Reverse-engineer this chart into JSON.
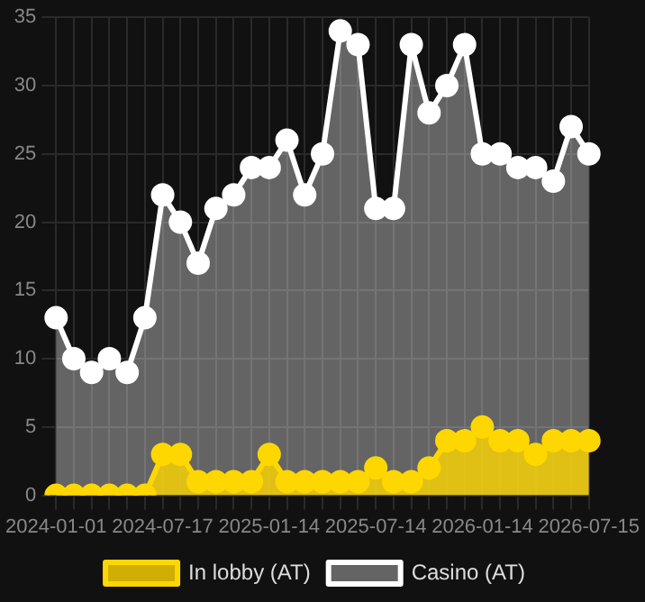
{
  "chart_data": {
    "type": "area",
    "categories": [
      "2024-01-01",
      null,
      null,
      null,
      null,
      null,
      "2024-07-17",
      null,
      null,
      null,
      null,
      null,
      "2025-01-14",
      null,
      null,
      null,
      null,
      null,
      "2025-07-14",
      null,
      null,
      null,
      null,
      null,
      "2026-01-14",
      null,
      null,
      null,
      null,
      null,
      "2026-07-15"
    ],
    "series": [
      {
        "name": "In lobby (AT)",
        "color": "#ffd700",
        "values": [
          0,
          0,
          0,
          0,
          0,
          0,
          3,
          3,
          1,
          1,
          1,
          1,
          3,
          1,
          1,
          1,
          1,
          1,
          2,
          1,
          1,
          2,
          4,
          4,
          5,
          4,
          4,
          3,
          4,
          4,
          4
        ]
      },
      {
        "name": "Casino (AT)",
        "color": "#ffffff",
        "values": [
          13,
          10,
          9,
          10,
          9,
          13,
          22,
          20,
          17,
          21,
          22,
          24,
          24,
          26,
          22,
          25,
          34,
          33,
          21,
          21,
          33,
          28,
          30,
          33,
          25,
          25,
          24,
          24,
          23,
          27,
          25
        ]
      }
    ],
    "ylim": [
      0,
      35
    ],
    "yticks": [
      0,
      5,
      10,
      15,
      20,
      25,
      30,
      35
    ],
    "grid": true,
    "legend": "bottom",
    "marker": "circle"
  }
}
